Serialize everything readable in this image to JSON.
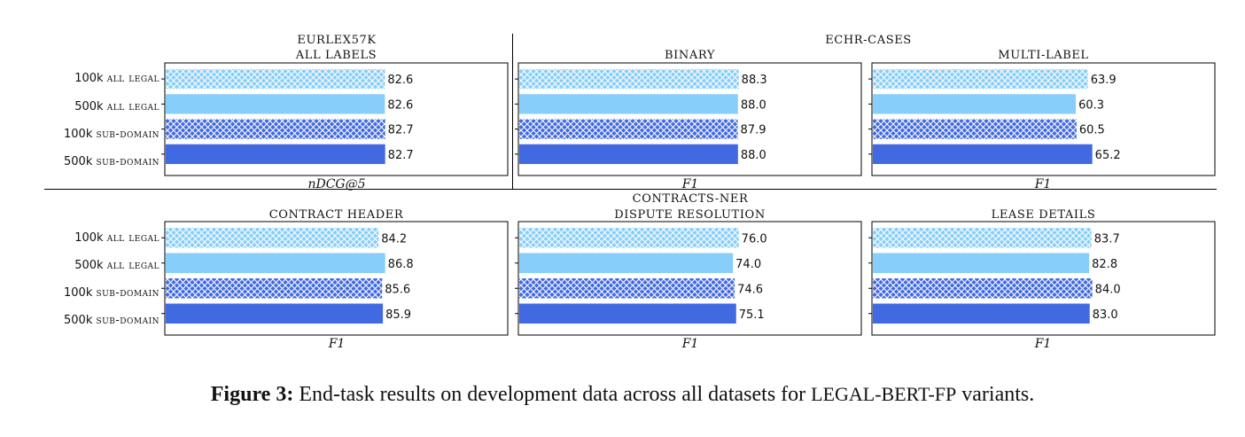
{
  "colors": {
    "light": "#87CEFA",
    "dark": "#4169E1",
    "frame": "#000000"
  },
  "categories": [
    "100k all legal",
    "500k all legal",
    "100k sub-domain",
    "500k sub-domain"
  ],
  "category_labels": [
    {
      "prefix": "100k",
      "rest": "all legal"
    },
    {
      "prefix": "500k",
      "rest": "all legal"
    },
    {
      "prefix": "100k",
      "rest": "sub-domain"
    },
    {
      "prefix": "500k",
      "rest": "sub-domain"
    }
  ],
  "group_titles": {
    "eurlex": "EURLEX57K",
    "echr": "ECHR-CASES",
    "contracts": "CONTRACTS-NER"
  },
  "chart_data": [
    {
      "type": "bar",
      "orientation": "horizontal",
      "title": "ALL LABELS",
      "group": "EURLEX57K",
      "xlabel": "nDCG@5",
      "categories": [
        "100k all legal",
        "500k all legal",
        "100k sub-domain",
        "500k sub-domain"
      ],
      "values": [
        82.6,
        82.6,
        82.7,
        82.7
      ],
      "value_labels": [
        "82.6",
        "82.6",
        "82.7",
        "82.7"
      ]
    },
    {
      "type": "bar",
      "orientation": "horizontal",
      "title": "BINARY",
      "group": "ECHR-CASES",
      "xlabel": "F1",
      "categories": [
        "100k all legal",
        "500k all legal",
        "100k sub-domain",
        "500k sub-domain"
      ],
      "values": [
        88.3,
        88.0,
        87.9,
        88.0
      ],
      "value_labels": [
        "88.3",
        "88.0",
        "87.9",
        "88.0"
      ]
    },
    {
      "type": "bar",
      "orientation": "horizontal",
      "title": "MULTI-LABEL",
      "group": "ECHR-CASES",
      "xlabel": "F1",
      "categories": [
        "100k all legal",
        "500k all legal",
        "100k sub-domain",
        "500k sub-domain"
      ],
      "values": [
        63.9,
        60.3,
        60.5,
        65.2
      ],
      "value_labels": [
        "63.9",
        "60.3",
        "60.5",
        "65.2"
      ]
    },
    {
      "type": "bar",
      "orientation": "horizontal",
      "title": "CONTRACT HEADER",
      "group": "",
      "xlabel": "F1",
      "categories": [
        "100k all legal",
        "500k all legal",
        "100k sub-domain",
        "500k sub-domain"
      ],
      "values": [
        84.2,
        86.8,
        85.6,
        85.9
      ],
      "value_labels": [
        "84.2",
        "86.8",
        "85.6",
        "85.9"
      ]
    },
    {
      "type": "bar",
      "orientation": "horizontal",
      "title": "DISPUTE RESOLUTION",
      "group": "CONTRACTS-NER",
      "xlabel": "F1",
      "categories": [
        "100k all legal",
        "500k all legal",
        "100k sub-domain",
        "500k sub-domain"
      ],
      "values": [
        76.0,
        74.0,
        74.6,
        75.1
      ],
      "value_labels": [
        "76.0",
        "74.0",
        "74.6",
        "75.1"
      ]
    },
    {
      "type": "bar",
      "orientation": "horizontal",
      "title": "LEASE DETAILS",
      "group": "",
      "xlabel": "F1",
      "categories": [
        "100k all legal",
        "500k all legal",
        "100k sub-domain",
        "500k sub-domain"
      ],
      "values": [
        83.7,
        82.8,
        84.0,
        83.0
      ],
      "value_labels": [
        "83.7",
        "82.8",
        "84.0",
        "83.0"
      ]
    }
  ],
  "caption": {
    "label": "Figure 3:",
    "text_before": "End-task results on development data across all datasets for",
    "model": "LEGAL-BERT-FP",
    "text_after": "variants."
  }
}
